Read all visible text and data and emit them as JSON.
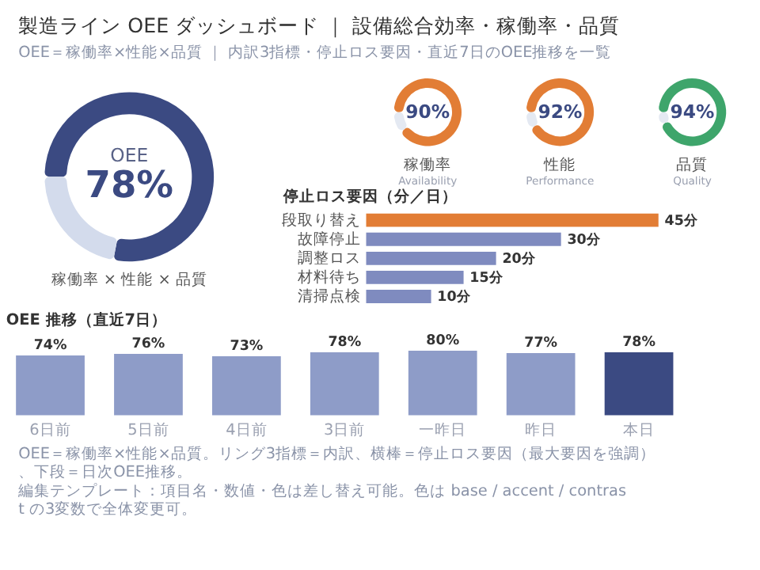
{
  "chart_data": [
    {
      "type": "other",
      "title": "製造ライン OEE ダッシュボード ｜ 設備総合効率・稼働率・品質",
      "subtitle": "OEE＝稼働率×性能×品質 ｜ 内訳3指標・停止ロス要因・直近7日のOEE推移を一覧"
    },
    {
      "type": "donut",
      "title": "OEE",
      "xlabel": "稼働率 × 性能 × 品質",
      "categories": [
        null,
        null
      ],
      "values": [
        78,
        22
      ],
      "colors": [
        "#3b4a82",
        "#d3dbec"
      ],
      "value_labels": [
        "78%",
        null
      ]
    },
    {
      "type": "donut",
      "xlabel": "稼働率",
      "subtitle": "Availability",
      "categories": [
        null,
        null
      ],
      "values": [
        90,
        10
      ],
      "colors": [
        "#e27d35",
        "#e4e9f2"
      ],
      "value_labels": [
        "90%",
        null
      ]
    },
    {
      "type": "donut",
      "xlabel": "性能",
      "subtitle": "Performance",
      "categories": [
        null,
        null
      ],
      "values": [
        92,
        8
      ],
      "colors": [
        "#e27d35",
        "#e4e9f2"
      ],
      "value_labels": [
        "92%",
        null
      ]
    },
    {
      "type": "donut",
      "xlabel": "品質",
      "subtitle": "Quality",
      "categories": [
        null,
        null
      ],
      "values": [
        94,
        6
      ],
      "colors": [
        "#3ea56b",
        "#e4e9f2"
      ],
      "value_labels": [
        "94%",
        null
      ]
    },
    {
      "type": "bar",
      "orientation": "horizontal",
      "title": "停止ロス要因（分／日）",
      "categories": [
        "段取り替え",
        "故障停止",
        "調整ロス",
        "材料待ち",
        "清掃点検"
      ],
      "values": [
        45,
        30,
        20,
        15,
        10
      ],
      "colors": [
        "#e27d35",
        "#7f8bbf",
        "#7f8bbf",
        "#7f8bbf",
        "#7f8bbf"
      ],
      "value_labels": [
        "45分",
        "30分",
        "20分",
        "15分",
        "10分"
      ]
    },
    {
      "type": "bar",
      "title": "OEE 推移（直近7日）",
      "categories": [
        "6日前",
        "5日前",
        "4日前",
        "3日前",
        "一昨日",
        "昨日",
        "本日"
      ],
      "values": [
        74,
        76,
        73,
        78,
        80,
        77,
        78
      ],
      "colors": [
        "#8e9cc8",
        "#8e9cc8",
        "#8e9cc8",
        "#8e9cc8",
        "#8e9cc8",
        "#8e9cc8",
        "#3b4a82"
      ],
      "value_labels": [
        "74%",
        "76%",
        "73%",
        "78%",
        "80%",
        "77%",
        "78%"
      ]
    },
    {
      "type": "other",
      "annotations": [
        "OEE＝稼働率×性能×品質。リング3指標＝内訳、横棒＝停止ロス要因（最大要因を強調）、下段＝日次OEE推移。",
        "編集テンプレート：項目名・数値・色は差し替え可能。色は base / accent / contrast の3変数で全体変更可。"
      ]
    }
  ]
}
